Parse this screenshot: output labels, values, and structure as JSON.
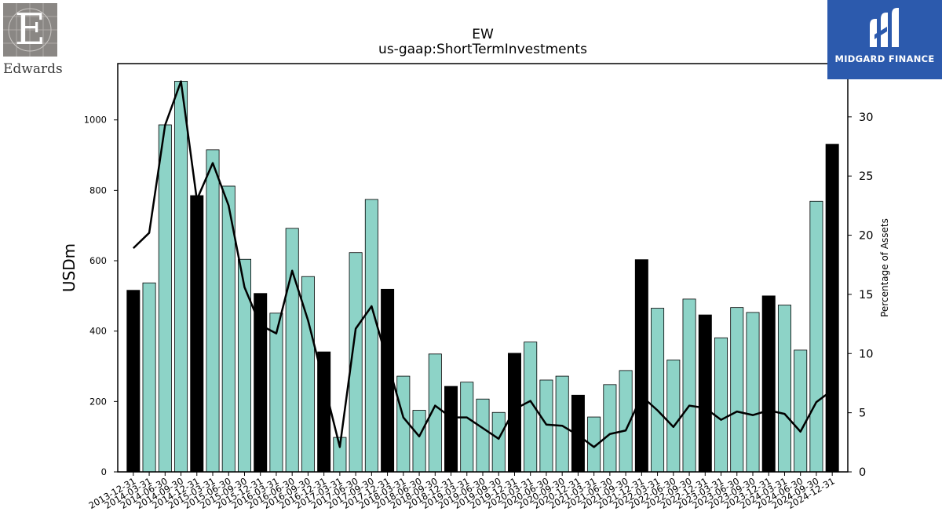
{
  "title": "EW",
  "subtitle": "us-gaap:ShortTermInvestments",
  "brand_left": {
    "name": "Edwards",
    "mark": "E"
  },
  "brand_right": {
    "name": "MIDGARD FINANCE"
  },
  "colors": {
    "bar_regular": "#8dd3c7",
    "bar_highlight": "#000000",
    "line": "#000000",
    "brand_right_bg": "#2c5aad",
    "brand_left_bg": "#8a8784"
  },
  "chart_data": {
    "type": "bar",
    "title": "EW",
    "subtitle": "us-gaap:ShortTermInvestments",
    "ylabel": "USDm",
    "y2label": "Percentage of Assets",
    "ylim": [
      0,
      1160
    ],
    "y2lim": [
      0,
      34.5
    ],
    "yticks": [
      0,
      200,
      400,
      600,
      800,
      1000
    ],
    "y2ticks": [
      0,
      5,
      10,
      15,
      20,
      25,
      30
    ],
    "grid": false,
    "categories": [
      "2013-12-31",
      "2014-03-31",
      "2014-06-30",
      "2014-09-30",
      "2014-12-31",
      "2015-03-31",
      "2015-06-30",
      "2015-09-30",
      "2015-12-31",
      "2016-03-31",
      "2016-06-30",
      "2016-09-30",
      "2016-12-31",
      "2017-03-31",
      "2017-06-30",
      "2017-09-30",
      "2017-12-31",
      "2018-03-31",
      "2018-06-30",
      "2018-09-30",
      "2018-12-31",
      "2019-03-31",
      "2019-06-30",
      "2019-09-30",
      "2019-12-31",
      "2020-03-31",
      "2020-06-30",
      "2020-09-30",
      "2020-12-31",
      "2021-03-31",
      "2021-06-30",
      "2021-09-30",
      "2021-12-31",
      "2022-03-31",
      "2022-06-30",
      "2022-09-30",
      "2022-12-31",
      "2023-03-31",
      "2023-06-30",
      "2023-09-30",
      "2023-12-31",
      "2024-03-31",
      "2024-06-30",
      "2024-09-30",
      "2024-12-31"
    ],
    "series": [
      {
        "kind": "bar",
        "axis": "left",
        "values": [
          516,
          537,
          986,
          1110,
          785,
          915,
          812,
          604,
          507,
          451,
          692,
          555,
          341,
          98,
          623,
          774,
          519,
          272,
          175,
          335,
          243,
          255,
          207,
          169,
          337,
          369,
          261,
          272,
          218,
          156,
          248,
          288,
          603,
          465,
          318,
          491,
          446,
          381,
          467,
          453,
          500,
          474,
          346,
          769,
          931
        ],
        "highlight": [
          true,
          false,
          false,
          false,
          true,
          false,
          false,
          false,
          true,
          false,
          false,
          false,
          true,
          false,
          false,
          false,
          true,
          false,
          false,
          false,
          true,
          false,
          false,
          false,
          true,
          false,
          false,
          false,
          true,
          false,
          false,
          false,
          true,
          false,
          false,
          false,
          true,
          false,
          false,
          false,
          true,
          false,
          false,
          false,
          true
        ]
      },
      {
        "kind": "line",
        "axis": "right",
        "values": [
          18.9,
          20.2,
          29.3,
          33.0,
          23.0,
          26.1,
          22.5,
          15.6,
          12.4,
          11.7,
          17.0,
          12.8,
          7.5,
          2.1,
          12.1,
          14.0,
          9.3,
          4.6,
          3.0,
          5.6,
          4.6,
          4.6,
          3.7,
          2.8,
          5.3,
          6.0,
          4.0,
          3.9,
          3.1,
          2.1,
          3.2,
          3.5,
          6.4,
          5.2,
          3.8,
          5.6,
          5.4,
          4.4,
          5.1,
          4.8,
          5.2,
          4.9,
          3.4,
          5.9,
          6.9
        ]
      }
    ]
  }
}
